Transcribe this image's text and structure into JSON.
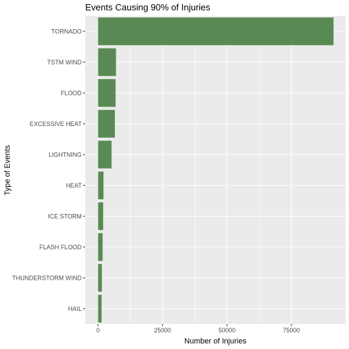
{
  "chart_data": {
    "type": "bar",
    "orientation": "horizontal",
    "title": "Events Causing 90% of Injuries",
    "xlabel": "Number of Injuries",
    "ylabel": "Type of Events",
    "categories": [
      "TORNADO",
      "TSTM WIND",
      "FLOOD",
      "EXCESSIVE HEAT",
      "LIGHTNING",
      "HEAT",
      "ICE STORM",
      "FLASH FLOOD",
      "THUNDERSTORM WIND",
      "HAIL"
    ],
    "values": [
      91346,
      6957,
      6789,
      6525,
      5230,
      2100,
      1975,
      1777,
      1488,
      1361
    ],
    "xlim": [
      -5000,
      96000
    ],
    "x_ticks": [
      0,
      25000,
      50000,
      75000
    ],
    "x_tick_labels": [
      "0",
      "25000",
      "50000",
      "75000"
    ],
    "bar_color": "#5a8a54",
    "panel_background": "#ebebeb",
    "grid": true
  }
}
